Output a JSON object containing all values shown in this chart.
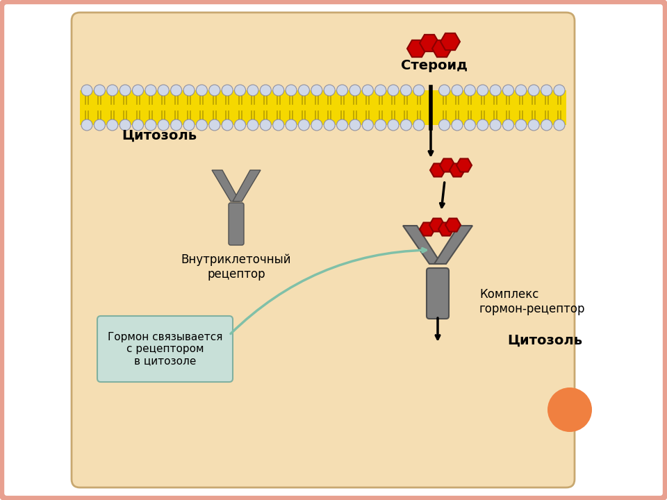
{
  "bg_color": "#ffffff",
  "slide_border_color": "#e8a090",
  "cell_bg_color": "#f5deb3",
  "membrane_yellow": "#f5d800",
  "membrane_head_color": "#d0d8e8",
  "steroid_color": "#cc0000",
  "receptor_color": "#808080",
  "arrow_color": "#000000",
  "label_steroid": "Стероид",
  "label_cytosol_top": "Цитозоль",
  "label_intracell_receptor": "Внутриклеточный\nрецептор",
  "label_complex": "Комплекс\nгормон-рецептор",
  "label_cytosol_bottom": "Цитозоль",
  "label_box": "Гормон связывается\nс рецептором\nв цитозоле",
  "orange_circle_color": "#f08040",
  "box_bg_color": "#c8e0d8"
}
